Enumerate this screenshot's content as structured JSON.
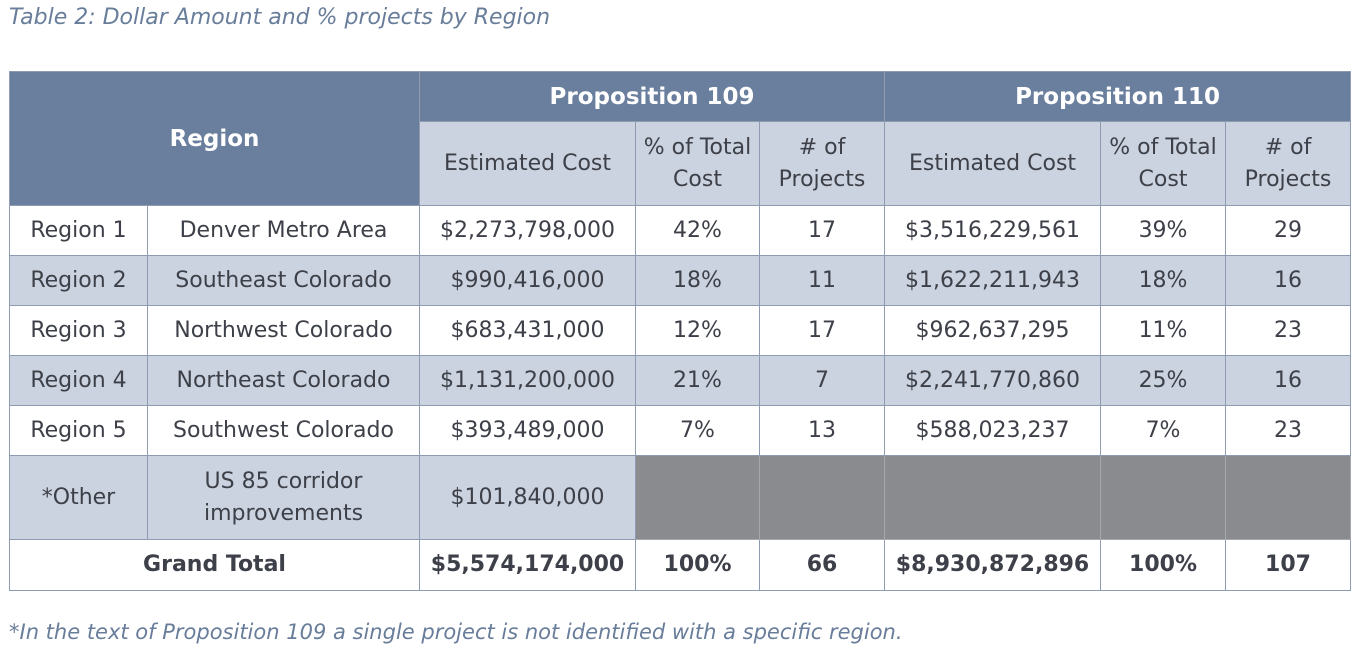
{
  "caption": "Table 2: Dollar Amount and % projects by Region",
  "headers": {
    "region": "Region",
    "prop109": "Proposition 109",
    "prop110": "Proposition 110",
    "estimated_cost": "Estimated Cost",
    "pct_total_line1": "% of Total",
    "pct_total_line2": "Cost",
    "num_projects_line1": "# of",
    "num_projects_line2": "Projects"
  },
  "rows": [
    {
      "region": "Region 1",
      "area": "Denver Metro Area",
      "p109_cost": "$2,273,798,000",
      "p109_pct": "42%",
      "p109_count": "17",
      "p110_cost": "$3,516,229,561",
      "p110_pct": "39%",
      "p110_count": "29"
    },
    {
      "region": "Region 2",
      "area": "Southeast Colorado",
      "p109_cost": "$990,416,000",
      "p109_pct": "18%",
      "p109_count": "11",
      "p110_cost": "$1,622,211,943",
      "p110_pct": "18%",
      "p110_count": "16"
    },
    {
      "region": "Region 3",
      "area": "Northwest Colorado",
      "p109_cost": "$683,431,000",
      "p109_pct": "12%",
      "p109_count": "17",
      "p110_cost": "$962,637,295",
      "p110_pct": "11%",
      "p110_count": "23"
    },
    {
      "region": "Region 4",
      "area": "Northeast Colorado",
      "p109_cost": "$1,131,200,000",
      "p109_pct": "21%",
      "p109_count": "7",
      "p110_cost": "$2,241,770,860",
      "p110_pct": "25%",
      "p110_count": "16"
    },
    {
      "region": "Region 5",
      "area": "Southwest Colorado",
      "p109_cost": "$393,489,000",
      "p109_pct": "7%",
      "p109_count": "13",
      "p110_cost": "$588,023,237",
      "p110_pct": "7%",
      "p110_count": "23"
    }
  ],
  "other_row": {
    "region": "*Other",
    "area_line1": "US 85 corridor",
    "area_line2": "improvements",
    "p109_cost": "$101,840,000"
  },
  "total_row": {
    "label": "Grand Total",
    "p109_cost": "$5,574,174,000",
    "p109_pct": "100%",
    "p109_count": "66",
    "p110_cost": "$8,930,872,896",
    "p110_pct": "100%",
    "p110_count": "107"
  },
  "footnote": "*In the text of Proposition 109 a single project is not identified with a specific region.",
  "colors": {
    "header_dark": "#6a7f9e",
    "header_light": "#cbd3e0",
    "blank_cell": "#8a8b8f",
    "caption_text": "#687d9a"
  }
}
